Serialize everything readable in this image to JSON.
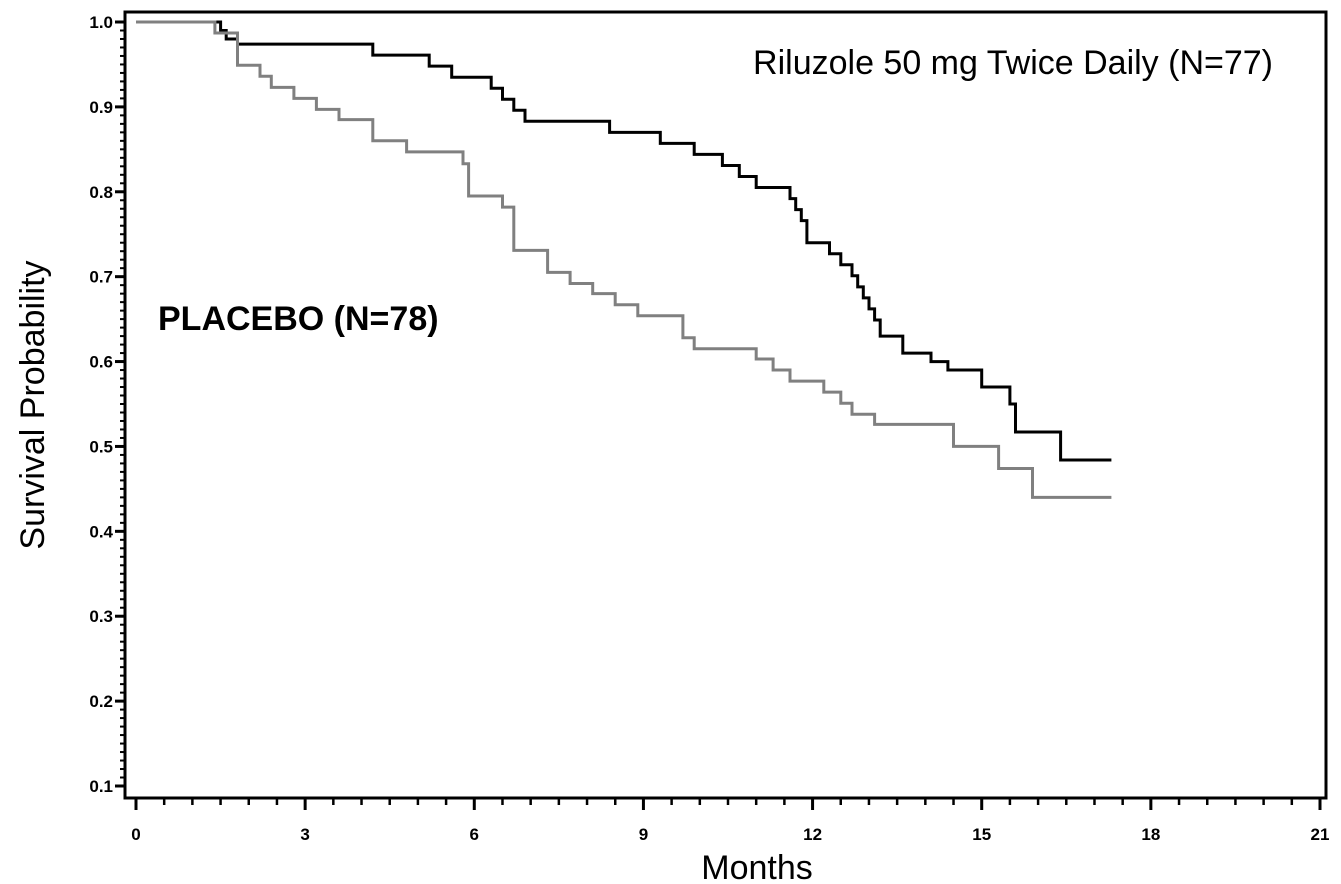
{
  "chart_data": {
    "type": "line",
    "title": "",
    "xlabel": "Months",
    "ylabel": "Survival Probability",
    "xlim": [
      0,
      21
    ],
    "ylim": [
      0.1,
      1.0
    ],
    "x_ticks": [
      0,
      3,
      6,
      9,
      12,
      15,
      18,
      21
    ],
    "x_tick_labels": [
      "0",
      "3",
      "6",
      "9",
      "12",
      "15",
      "18",
      "21"
    ],
    "y_ticks": [
      0.1,
      0.2,
      0.3,
      0.4,
      0.5,
      0.6,
      0.7,
      0.8,
      0.9,
      1.0
    ],
    "y_tick_labels": [
      "0.1",
      "0.2",
      "0.3",
      "0.4",
      "0.5",
      "0.6",
      "0.7",
      "0.8",
      "0.9",
      "1.0"
    ],
    "grid": false,
    "step": true,
    "series": [
      {
        "name": "Riluzole 50 mg Twice Daily (N=77)",
        "color": "#000000",
        "points": [
          [
            0,
            1.0
          ],
          [
            1.5,
            0.99
          ],
          [
            1.6,
            0.98
          ],
          [
            1.8,
            0.974
          ],
          [
            4.2,
            0.961
          ],
          [
            5.2,
            0.948
          ],
          [
            5.6,
            0.935
          ],
          [
            6.3,
            0.922
          ],
          [
            6.5,
            0.909
          ],
          [
            6.7,
            0.896
          ],
          [
            6.9,
            0.883
          ],
          [
            8.4,
            0.87
          ],
          [
            9.3,
            0.857
          ],
          [
            9.9,
            0.844
          ],
          [
            10.4,
            0.831
          ],
          [
            10.7,
            0.818
          ],
          [
            11.0,
            0.805
          ],
          [
            11.6,
            0.792
          ],
          [
            11.7,
            0.779
          ],
          [
            11.8,
            0.766
          ],
          [
            11.9,
            0.74
          ],
          [
            12.3,
            0.727
          ],
          [
            12.5,
            0.714
          ],
          [
            12.7,
            0.701
          ],
          [
            12.8,
            0.688
          ],
          [
            12.9,
            0.675
          ],
          [
            13.0,
            0.662
          ],
          [
            13.1,
            0.649
          ],
          [
            13.2,
            0.63
          ],
          [
            13.6,
            0.61
          ],
          [
            14.1,
            0.6
          ],
          [
            14.4,
            0.59
          ],
          [
            15.0,
            0.57
          ],
          [
            15.5,
            0.55
          ],
          [
            15.6,
            0.517
          ],
          [
            16.4,
            0.484
          ],
          [
            17.3,
            0.484
          ]
        ]
      },
      {
        "name": "PLACEBO (N=78)",
        "color": "#808080",
        "points": [
          [
            0,
            1.0
          ],
          [
            1.4,
            0.987
          ],
          [
            1.8,
            0.949
          ],
          [
            2.2,
            0.936
          ],
          [
            2.4,
            0.923
          ],
          [
            2.8,
            0.91
          ],
          [
            3.2,
            0.897
          ],
          [
            3.6,
            0.885
          ],
          [
            4.2,
            0.86
          ],
          [
            4.8,
            0.847
          ],
          [
            5.8,
            0.833
          ],
          [
            5.9,
            0.795
          ],
          [
            6.5,
            0.782
          ],
          [
            6.7,
            0.731
          ],
          [
            7.3,
            0.705
          ],
          [
            7.7,
            0.692
          ],
          [
            8.1,
            0.68
          ],
          [
            8.5,
            0.667
          ],
          [
            8.9,
            0.654
          ],
          [
            9.7,
            0.628
          ],
          [
            9.9,
            0.615
          ],
          [
            11.0,
            0.603
          ],
          [
            11.3,
            0.59
          ],
          [
            11.6,
            0.577
          ],
          [
            12.2,
            0.564
          ],
          [
            12.5,
            0.551
          ],
          [
            12.7,
            0.538
          ],
          [
            13.1,
            0.526
          ],
          [
            14.1,
            0.526
          ],
          [
            14.5,
            0.5
          ],
          [
            15.3,
            0.474
          ],
          [
            15.9,
            0.44
          ],
          [
            17.3,
            0.44
          ]
        ]
      }
    ],
    "annotations": [
      {
        "text": "Riluzole 50 mg Twice Daily (N=77)",
        "series": 0
      },
      {
        "text": "PLACEBO (N=78)",
        "series": 1
      }
    ]
  }
}
